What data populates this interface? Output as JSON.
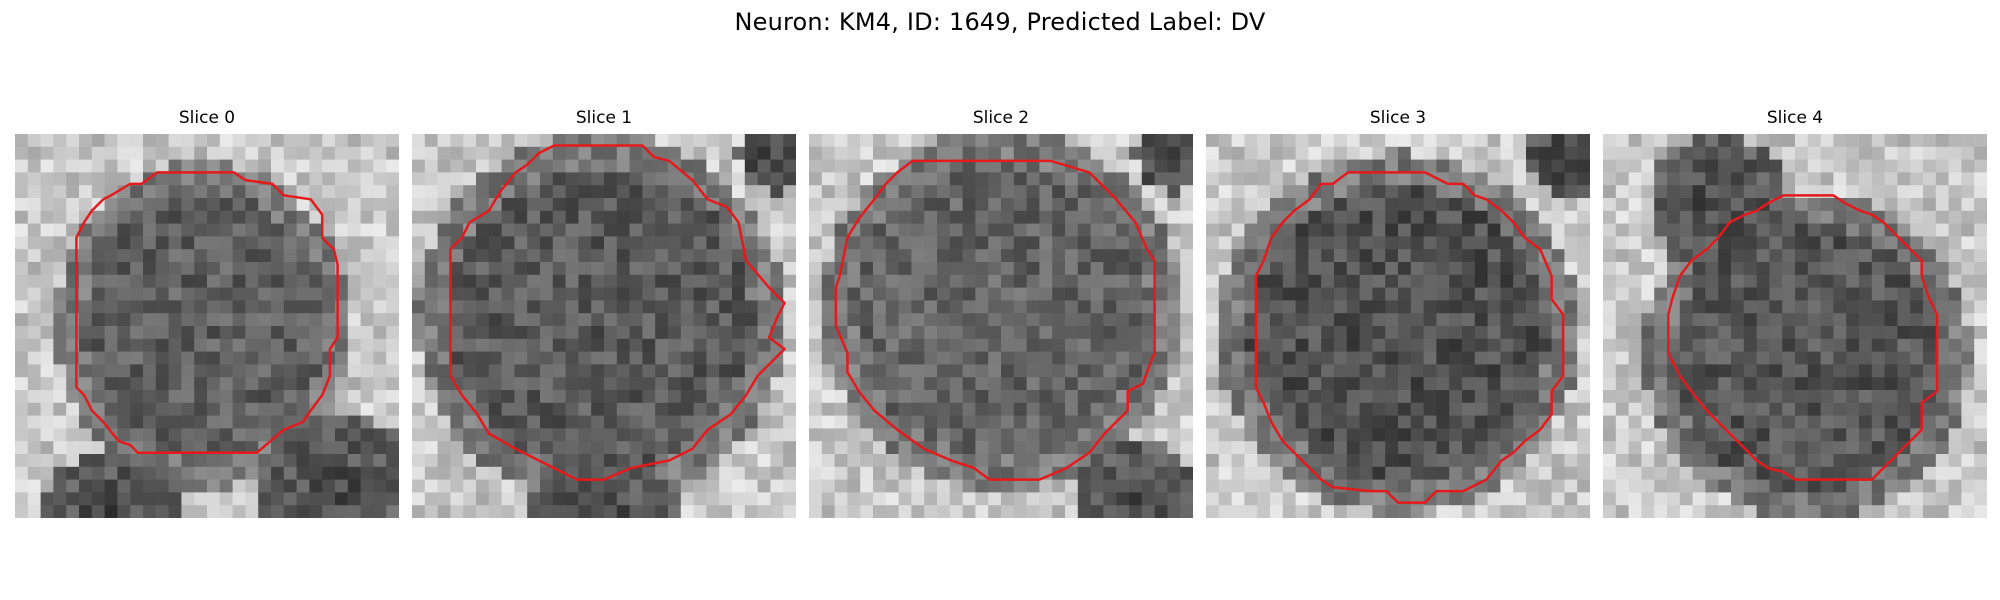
{
  "figure": {
    "title": "Neuron: KM4, ID: 1649, Predicted Label: DV"
  },
  "panels": [
    {
      "title": "Slice 0"
    },
    {
      "title": "Slice 1"
    },
    {
      "title": "Slice 2"
    },
    {
      "title": "Slice 3"
    },
    {
      "title": "Slice 4"
    }
  ],
  "colors": {
    "contour": "#e41a1c",
    "background": "#ffffff"
  }
}
